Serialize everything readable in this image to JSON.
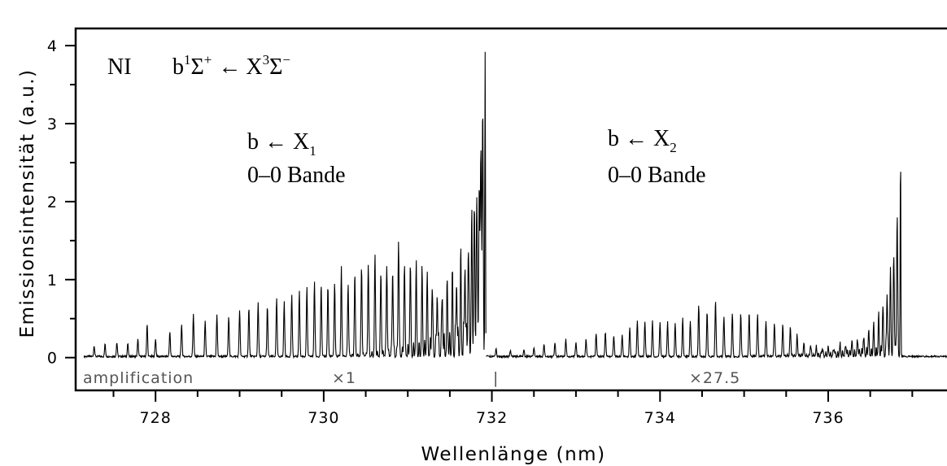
{
  "chart_data": {
    "type": "line",
    "title": "NI",
    "transition": {
      "lower_b": "b",
      "lower_b_sup": "1",
      "sigma_plus": "Σ",
      "plus_sup": "+",
      "arrow": "←",
      "X": "X",
      "X_sup": "3",
      "sigma_minus": "Σ",
      "minus_sup": "−"
    },
    "xlabel": "Wellenlänge (nm)",
    "ylabel": "Emissionsintensität (a.u.)",
    "xlim": [
      727.05,
      737.5
    ],
    "ylim": [
      -0.42,
      4.22
    ],
    "x_ticks": [
      {
        "value": 728,
        "label": "728"
      },
      {
        "value": 730,
        "label": "730"
      },
      {
        "value": 732,
        "label": "732"
      },
      {
        "value": 734,
        "label": "734"
      },
      {
        "value": 736,
        "label": "736"
      }
    ],
    "x_minor_ticks": [
      727.5,
      728.5,
      729,
      729.5,
      730.5,
      731,
      731.5,
      732.5,
      733,
      733.5,
      734.5,
      735,
      735.5,
      736.5,
      737,
      737.5
    ],
    "y_ticks": [
      {
        "value": 0,
        "label": "0"
      },
      {
        "value": 1,
        "label": "1"
      },
      {
        "value": 2,
        "label": "2"
      },
      {
        "value": 3,
        "label": "3"
      },
      {
        "value": 4,
        "label": "4"
      }
    ],
    "y_minor_ticks": [
      0.5,
      1.5,
      2.5,
      3.5
    ],
    "annotations": {
      "band1_line1_prefix": "b ← X",
      "band1_line1_sub": "1",
      "band1_line2": "0–0 Bande",
      "band2_line1_prefix": "b ← X",
      "band2_line1_sub": "2",
      "band2_line2": "0–0 Bande"
    },
    "amplification": {
      "label": "amplification",
      "factor1": "×1",
      "separator": "|",
      "factor2": "×27.5"
    },
    "series": [
      {
        "band": "b ← X1",
        "x_start": 727.15,
        "band_head": 731.92,
        "head_intensity": 3.92,
        "peaks": [
          {
            "x": 727.27,
            "y": 0.14
          },
          {
            "x": 727.4,
            "y": 0.16
          },
          {
            "x": 727.54,
            "y": 0.18
          },
          {
            "x": 727.67,
            "y": 0.17
          },
          {
            "x": 727.79,
            "y": 0.22
          },
          {
            "x": 727.9,
            "y": 0.41
          },
          {
            "x": 728.0,
            "y": 0.23
          },
          {
            "x": 728.17,
            "y": 0.32
          },
          {
            "x": 728.31,
            "y": 0.42
          },
          {
            "x": 728.45,
            "y": 0.55
          },
          {
            "x": 728.59,
            "y": 0.45
          },
          {
            "x": 728.73,
            "y": 0.54
          },
          {
            "x": 728.87,
            "y": 0.52
          },
          {
            "x": 729.0,
            "y": 0.6
          },
          {
            "x": 729.11,
            "y": 0.63
          },
          {
            "x": 729.22,
            "y": 0.7
          },
          {
            "x": 729.33,
            "y": 0.64
          },
          {
            "x": 729.44,
            "y": 0.75
          },
          {
            "x": 729.53,
            "y": 0.7
          },
          {
            "x": 729.62,
            "y": 0.8
          },
          {
            "x": 729.71,
            "y": 0.85
          },
          {
            "x": 729.8,
            "y": 0.88
          },
          {
            "x": 729.89,
            "y": 0.96
          },
          {
            "x": 729.97,
            "y": 0.93
          },
          {
            "x": 730.05,
            "y": 0.91
          },
          {
            "x": 730.13,
            "y": 0.95
          },
          {
            "x": 730.21,
            "y": 1.13
          },
          {
            "x": 730.29,
            "y": 0.93
          },
          {
            "x": 730.37,
            "y": 1.05
          },
          {
            "x": 730.45,
            "y": 1.15
          },
          {
            "x": 730.53,
            "y": 1.17
          },
          {
            "x": 730.61,
            "y": 1.26
          },
          {
            "x": 730.68,
            "y": 1.07
          },
          {
            "x": 730.75,
            "y": 1.17
          },
          {
            "x": 730.82,
            "y": 1.1
          },
          {
            "x": 730.89,
            "y": 1.47
          },
          {
            "x": 730.96,
            "y": 1.16
          },
          {
            "x": 731.03,
            "y": 1.11
          },
          {
            "x": 731.1,
            "y": 1.06
          },
          {
            "x": 731.17,
            "y": 0.98
          },
          {
            "x": 731.23,
            "y": 0.92
          },
          {
            "x": 731.29,
            "y": 0.85
          },
          {
            "x": 731.35,
            "y": 0.78
          },
          {
            "x": 731.41,
            "y": 0.75
          },
          {
            "x": 731.47,
            "y": 0.78
          },
          {
            "x": 731.53,
            "y": 0.84
          },
          {
            "x": 731.58,
            "y": 0.94
          },
          {
            "x": 731.63,
            "y": 1.05
          },
          {
            "x": 731.68,
            "y": 1.15
          },
          {
            "x": 731.72,
            "y": 1.35
          },
          {
            "x": 731.76,
            "y": 1.55
          },
          {
            "x": 731.79,
            "y": 1.75
          },
          {
            "x": 731.82,
            "y": 2.0
          },
          {
            "x": 731.85,
            "y": 2.25
          },
          {
            "x": 731.87,
            "y": 2.55
          },
          {
            "x": 731.89,
            "y": 2.95
          }
        ]
      },
      {
        "band": "b ← X2",
        "x_start": 731.93,
        "band_head": 736.86,
        "head_intensity": 2.7,
        "peaks": [
          {
            "x": 732.05,
            "y": 0.1
          },
          {
            "x": 732.22,
            "y": 0.08
          },
          {
            "x": 732.38,
            "y": 0.09
          },
          {
            "x": 732.5,
            "y": 0.1
          },
          {
            "x": 732.62,
            "y": 0.15
          },
          {
            "x": 732.75,
            "y": 0.17
          },
          {
            "x": 732.88,
            "y": 0.22
          },
          {
            "x": 733.0,
            "y": 0.17
          },
          {
            "x": 733.12,
            "y": 0.22
          },
          {
            "x": 733.24,
            "y": 0.3
          },
          {
            "x": 733.35,
            "y": 0.32
          },
          {
            "x": 733.45,
            "y": 0.27
          },
          {
            "x": 733.55,
            "y": 0.28
          },
          {
            "x": 733.64,
            "y": 0.38
          },
          {
            "x": 733.73,
            "y": 0.46
          },
          {
            "x": 733.82,
            "y": 0.45
          },
          {
            "x": 733.91,
            "y": 0.45
          },
          {
            "x": 734.0,
            "y": 0.44
          },
          {
            "x": 734.09,
            "y": 0.44
          },
          {
            "x": 734.18,
            "y": 0.44
          },
          {
            "x": 734.27,
            "y": 0.5
          },
          {
            "x": 734.36,
            "y": 0.45
          },
          {
            "x": 734.46,
            "y": 0.67
          },
          {
            "x": 734.56,
            "y": 0.58
          },
          {
            "x": 734.66,
            "y": 0.73
          },
          {
            "x": 734.76,
            "y": 0.52
          },
          {
            "x": 734.86,
            "y": 0.56
          },
          {
            "x": 734.96,
            "y": 0.55
          },
          {
            "x": 735.06,
            "y": 0.57
          },
          {
            "x": 735.16,
            "y": 0.55
          },
          {
            "x": 735.26,
            "y": 0.45
          },
          {
            "x": 735.36,
            "y": 0.42
          },
          {
            "x": 735.46,
            "y": 0.4
          },
          {
            "x": 735.55,
            "y": 0.38
          },
          {
            "x": 735.63,
            "y": 0.26
          },
          {
            "x": 735.71,
            "y": 0.15
          },
          {
            "x": 735.79,
            "y": 0.14
          },
          {
            "x": 735.86,
            "y": 0.1
          },
          {
            "x": 735.93,
            "y": 0.1
          },
          {
            "x": 736.0,
            "y": 0.09
          },
          {
            "x": 736.07,
            "y": 0.09
          },
          {
            "x": 736.14,
            "y": 0.11
          },
          {
            "x": 736.21,
            "y": 0.13
          },
          {
            "x": 736.28,
            "y": 0.16
          },
          {
            "x": 736.35,
            "y": 0.18
          },
          {
            "x": 736.42,
            "y": 0.22
          },
          {
            "x": 736.48,
            "y": 0.28
          },
          {
            "x": 736.54,
            "y": 0.35
          },
          {
            "x": 736.6,
            "y": 0.45
          },
          {
            "x": 736.65,
            "y": 0.6
          },
          {
            "x": 736.7,
            "y": 0.8
          },
          {
            "x": 736.74,
            "y": 1.0
          },
          {
            "x": 736.78,
            "y": 1.3
          },
          {
            "x": 736.82,
            "y": 1.8
          }
        ]
      }
    ],
    "grid": false,
    "legend": "none"
  }
}
